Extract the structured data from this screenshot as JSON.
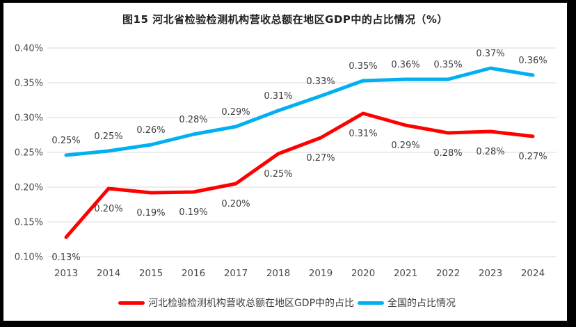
{
  "title": "图15 河北省检验检测机构营收总额在地区GDP中的占比情况（%）",
  "colors": {
    "frame_border": "#000000",
    "background": "#ffffff",
    "gridline": "#d9d9d9",
    "axis_text": "#4a4a4a",
    "data_label_text": "#3d3d3d",
    "title_text": "#1f1f1f",
    "hebei_series": "#ff0000",
    "national_series": "#00b0f0"
  },
  "chart_data": {
    "type": "line",
    "title": "图15 河北省检验检测机构营收总额在地区GDP中的占比情况（%）",
    "categories": [
      "2013",
      "2014",
      "2015",
      "2016",
      "2017",
      "2018",
      "2019",
      "2020",
      "2021",
      "2022",
      "2023",
      "2024"
    ],
    "series": [
      {
        "name": "全国的占比情况",
        "color": "#00b0f0",
        "values": [
          0.25,
          0.25,
          0.26,
          0.28,
          0.29,
          0.31,
          0.33,
          0.35,
          0.36,
          0.35,
          0.37,
          0.36
        ],
        "values_precise": [
          0.246,
          0.252,
          0.261,
          0.276,
          0.287,
          0.31,
          0.331,
          0.353,
          0.355,
          0.355,
          0.371,
          0.361
        ],
        "labels": [
          "0.25%",
          "0.25%",
          "0.26%",
          "0.28%",
          "0.29%",
          "0.31%",
          "0.33%",
          "0.35%",
          "0.36%",
          "0.35%",
          "0.37%",
          "0.36%"
        ],
        "label_position": "above"
      },
      {
        "name": "河北检验检测机构营收总额在地区GDP中的占比",
        "color": "#ff0000",
        "values": [
          0.13,
          0.2,
          0.19,
          0.19,
          0.2,
          0.25,
          0.27,
          0.31,
          0.29,
          0.28,
          0.28,
          0.27
        ],
        "values_precise": [
          0.128,
          0.198,
          0.192,
          0.193,
          0.205,
          0.248,
          0.271,
          0.306,
          0.289,
          0.278,
          0.28,
          0.273
        ],
        "labels": [
          "0.13%",
          "0.20%",
          "0.19%",
          "0.19%",
          "0.20%",
          "0.25%",
          "0.27%",
          "0.31%",
          "0.29%",
          "0.28%",
          "0.28%",
          "0.27%"
        ],
        "label_position": "below"
      }
    ],
    "ylim": [
      0.1,
      0.4
    ],
    "y_ticks": [
      {
        "value": 0.4,
        "label": "0.40%"
      },
      {
        "value": 0.35,
        "label": "0.35%"
      },
      {
        "value": 0.3,
        "label": "0.30%"
      },
      {
        "value": 0.25,
        "label": "0.25%"
      },
      {
        "value": 0.2,
        "label": "0.20%"
      },
      {
        "value": 0.15,
        "label": "0.15%"
      },
      {
        "value": 0.1,
        "label": "0.10%"
      }
    ],
    "grid": "horizontal",
    "legend_position": "bottom",
    "legend_order": [
      "河北检验检测机构营收总额在地区GDP中的占比",
      "全国的占比情况"
    ]
  },
  "legend": {
    "items": [
      {
        "label": "河北检验检测机构营收总额在地区GDP中的占比",
        "color": "#ff0000"
      },
      {
        "label": "全国的占比情况",
        "color": "#00b0f0"
      }
    ]
  }
}
